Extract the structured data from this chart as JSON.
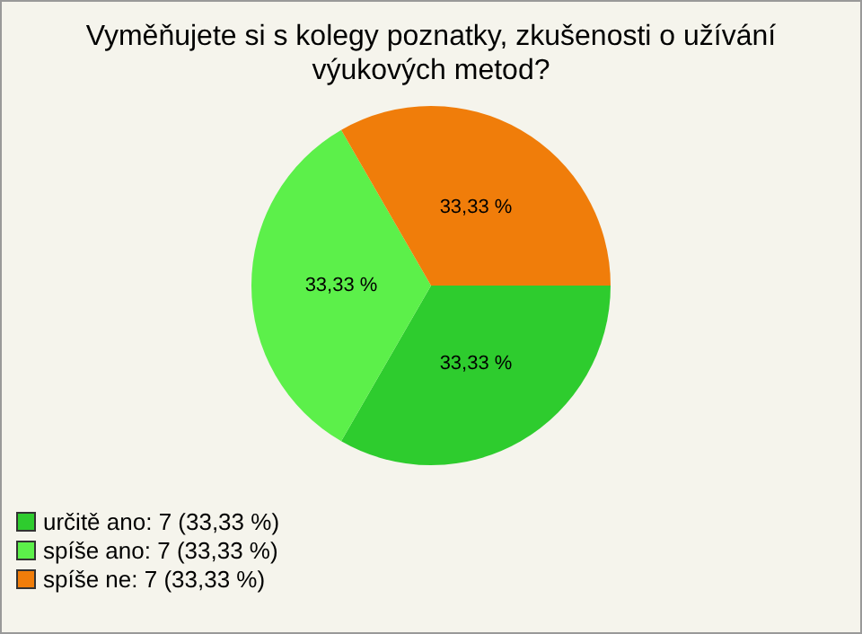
{
  "chart_data": {
    "type": "pie",
    "title": "Vyměňujete si s kolegy poznatky, zkušenosti o užívání výukových metod?",
    "categories": [
      "určitě ano: 7 (33,33 %)",
      "spíše ano: 7 (33,33 %)",
      "spíše ne: 7 (33,33 %)"
    ],
    "values": [
      33.33,
      33.33,
      33.33
    ],
    "colors": [
      "#2ecc2e",
      "#5cf04a",
      "#f07d0a"
    ],
    "value_labels": [
      "33,33 %",
      "33,33 %",
      "33,33 %"
    ],
    "legend": "bottom left"
  }
}
